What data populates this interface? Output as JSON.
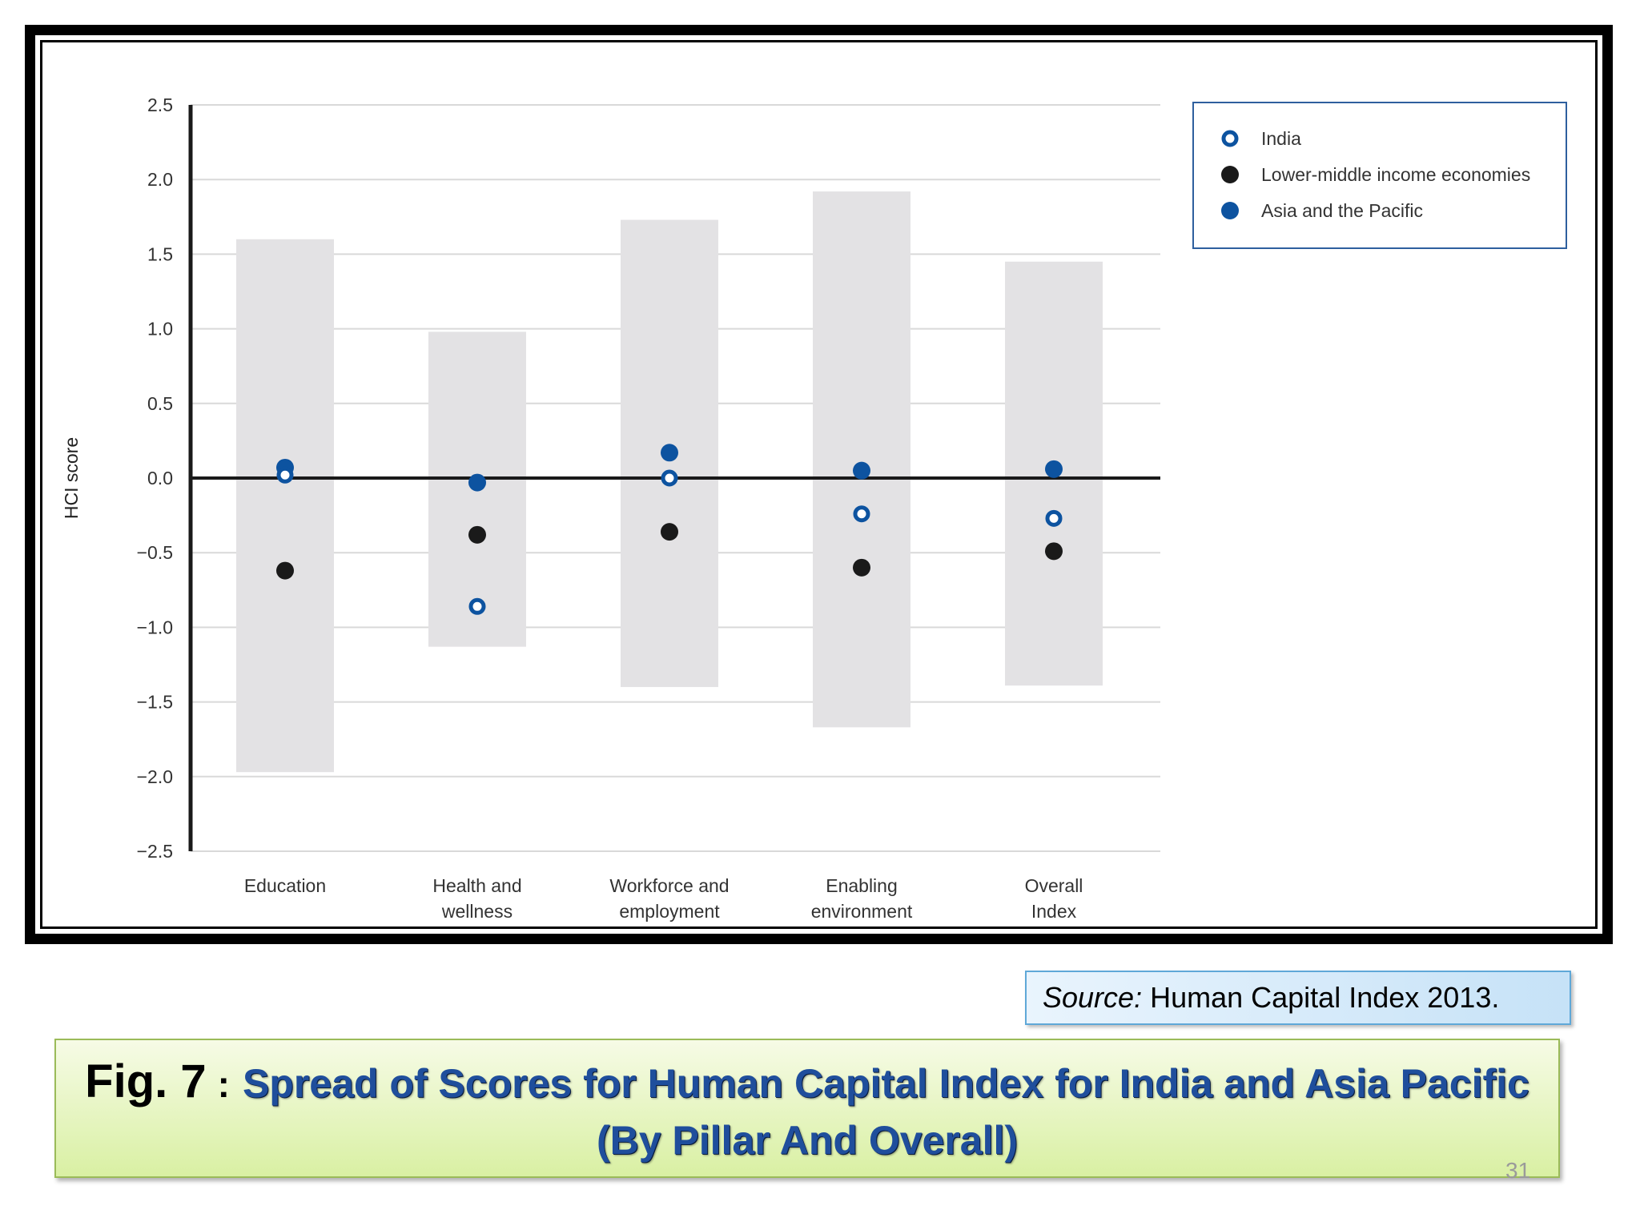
{
  "chart_data": {
    "type": "scatter",
    "ylabel": "HCI score",
    "ylim": [
      -2.5,
      2.5
    ],
    "yticks": [
      "2.5",
      "2.0",
      "1.5",
      "1.0",
      "0.5",
      "0.0",
      "−0.5",
      "−1.0",
      "−1.5",
      "−2.0",
      "−2.5"
    ],
    "ytick_values": [
      2.5,
      2.0,
      1.5,
      1.0,
      0.5,
      0.0,
      -0.5,
      -1.0,
      -1.5,
      -2.0,
      -2.5
    ],
    "grid": true,
    "legend_position": "top-right",
    "categories": [
      {
        "line1": "Education",
        "line2": ""
      },
      {
        "line1": "Health and",
        "line2": "wellness"
      },
      {
        "line1": "Workforce and",
        "line2": "employment"
      },
      {
        "line1": "Enabling",
        "line2": "environment"
      },
      {
        "line1": "Overall",
        "line2": "Index"
      }
    ],
    "ranges": [
      {
        "min": -1.97,
        "max": 1.6
      },
      {
        "min": -1.13,
        "max": 0.98
      },
      {
        "min": -1.4,
        "max": 1.73
      },
      {
        "min": -1.67,
        "max": 1.92
      },
      {
        "min": -1.39,
        "max": 1.45
      }
    ],
    "series": [
      {
        "name": "India",
        "marker": "hollow",
        "color": "#0d53a0",
        "values": [
          0.02,
          -0.86,
          0.0,
          -0.24,
          -0.27
        ]
      },
      {
        "name": "Lower-middle income economies",
        "marker": "filled",
        "color": "#1a1a1a",
        "values": [
          -0.62,
          -0.38,
          -0.36,
          -0.6,
          -0.49
        ]
      },
      {
        "name": "Asia and the Pacific",
        "marker": "filled",
        "color": "#0d53a0",
        "values": [
          0.07,
          -0.03,
          0.17,
          0.05,
          0.06
        ]
      }
    ]
  },
  "source": {
    "prefix": "Source:",
    "text": "Human Capital Index 2013."
  },
  "caption": {
    "fig_label": "Fig. 7",
    "separator": ":",
    "title_line1": "Spread of Scores for Human Capital Index for India and Asia Pacific",
    "title_line2": "(By Pillar And Overall)"
  },
  "page_number": "31"
}
